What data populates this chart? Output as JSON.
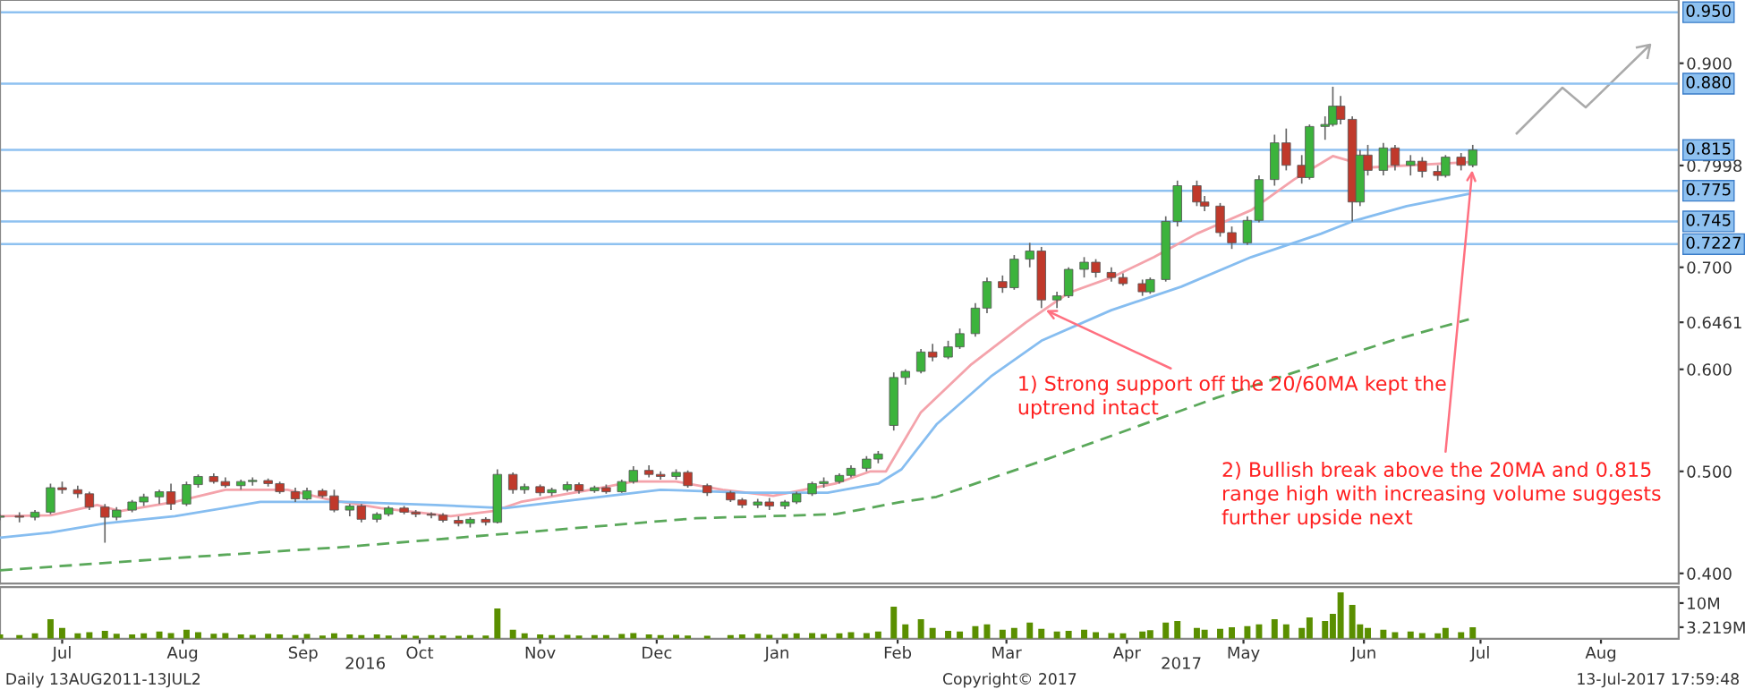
{
  "chart_data": [
    {
      "type": "candlestick",
      "x": [
        "2016-06-29",
        "2016-07-04",
        "2016-07-08",
        "2016-07-12",
        "2016-07-15",
        "2016-07-19",
        "2016-07-22",
        "2016-07-26",
        "2016-07-29",
        "2016-08-02",
        "2016-08-05",
        "2016-08-09",
        "2016-08-12",
        "2016-08-16",
        "2016-08-19",
        "2016-08-23",
        "2016-08-26",
        "2016-08-30",
        "2016-09-02",
        "2016-09-06",
        "2016-09-09",
        "2016-09-13",
        "2016-09-16",
        "2016-09-20",
        "2016-09-23",
        "2016-09-27",
        "2016-09-30",
        "2016-10-04",
        "2016-10-07",
        "2016-10-11",
        "2016-10-14",
        "2016-10-18",
        "2016-10-21",
        "2016-10-25",
        "2016-10-28",
        "2016-11-01",
        "2016-11-04",
        "2016-11-08",
        "2016-11-11",
        "2016-11-15",
        "2016-11-18",
        "2016-11-22",
        "2016-11-25",
        "2016-11-29",
        "2016-12-02",
        "2016-12-06",
        "2016-12-09",
        "2016-12-13",
        "2016-12-16",
        "2016-12-20",
        "2016-12-23",
        "2016-12-28",
        "2017-01-03",
        "2017-01-06",
        "2017-01-10",
        "2017-01-13",
        "2017-01-17",
        "2017-01-20",
        "2017-01-24",
        "2017-01-27",
        "2017-01-31",
        "2017-02-03",
        "2017-02-07",
        "2017-02-10",
        "2017-02-14",
        "2017-02-17",
        "2017-02-21",
        "2017-02-24",
        "2017-02-28",
        "2017-03-03",
        "2017-03-07",
        "2017-03-10",
        "2017-03-14",
        "2017-03-17",
        "2017-03-21",
        "2017-03-24",
        "2017-03-28",
        "2017-03-31",
        "2017-04-04",
        "2017-04-07",
        "2017-04-11",
        "2017-04-14",
        "2017-04-19",
        "2017-04-21",
        "2017-04-25",
        "2017-04-28",
        "2017-05-03",
        "2017-05-05",
        "2017-05-09",
        "2017-05-12",
        "2017-05-16",
        "2017-05-19",
        "2017-05-23",
        "2017-05-26",
        "2017-05-30",
        "2017-06-01",
        "2017-06-05",
        "2017-06-07",
        "2017-06-09",
        "2017-06-12",
        "2017-06-14",
        "2017-06-16",
        "2017-06-20",
        "2017-06-23",
        "2017-06-27",
        "2017-06-30",
        "2017-07-04",
        "2017-07-06",
        "2017-07-10",
        "2017-07-13"
      ],
      "ohlc": [
        [
          0.455,
          0.458,
          0.452,
          0.456
        ],
        [
          0.456,
          0.46,
          0.45,
          0.455
        ],
        [
          0.455,
          0.462,
          0.452,
          0.46
        ],
        [
          0.46,
          0.488,
          0.458,
          0.484
        ],
        [
          0.484,
          0.49,
          0.478,
          0.482
        ],
        [
          0.482,
          0.486,
          0.474,
          0.478
        ],
        [
          0.478,
          0.48,
          0.462,
          0.465
        ],
        [
          0.465,
          0.468,
          0.43,
          0.455
        ],
        [
          0.455,
          0.465,
          0.452,
          0.462
        ],
        [
          0.462,
          0.472,
          0.46,
          0.47
        ],
        [
          0.47,
          0.478,
          0.466,
          0.475
        ],
        [
          0.475,
          0.482,
          0.468,
          0.48
        ],
        [
          0.48,
          0.488,
          0.462,
          0.468
        ],
        [
          0.468,
          0.49,
          0.466,
          0.487
        ],
        [
          0.487,
          0.497,
          0.484,
          0.495
        ],
        [
          0.495,
          0.498,
          0.488,
          0.49
        ],
        [
          0.49,
          0.494,
          0.484,
          0.486
        ],
        [
          0.486,
          0.492,
          0.482,
          0.49
        ],
        [
          0.49,
          0.494,
          0.486,
          0.491
        ],
        [
          0.491,
          0.493,
          0.485,
          0.488
        ],
        [
          0.488,
          0.49,
          0.478,
          0.48
        ],
        [
          0.48,
          0.484,
          0.47,
          0.473
        ],
        [
          0.473,
          0.484,
          0.472,
          0.481
        ],
        [
          0.481,
          0.483,
          0.474,
          0.476
        ],
        [
          0.476,
          0.482,
          0.46,
          0.462
        ],
        [
          0.462,
          0.468,
          0.456,
          0.466
        ],
        [
          0.466,
          0.468,
          0.45,
          0.453
        ],
        [
          0.453,
          0.46,
          0.45,
          0.458
        ],
        [
          0.458,
          0.466,
          0.456,
          0.464
        ],
        [
          0.464,
          0.466,
          0.458,
          0.46
        ],
        [
          0.46,
          0.462,
          0.455,
          0.458
        ],
        [
          0.458,
          0.46,
          0.454,
          0.457
        ],
        [
          0.457,
          0.459,
          0.45,
          0.452
        ],
        [
          0.452,
          0.456,
          0.446,
          0.449
        ],
        [
          0.449,
          0.455,
          0.445,
          0.453
        ],
        [
          0.453,
          0.455,
          0.447,
          0.45
        ],
        [
          0.45,
          0.502,
          0.449,
          0.497
        ],
        [
          0.497,
          0.499,
          0.478,
          0.482
        ],
        [
          0.482,
          0.488,
          0.478,
          0.485
        ],
        [
          0.485,
          0.487,
          0.476,
          0.479
        ],
        [
          0.479,
          0.484,
          0.476,
          0.482
        ],
        [
          0.482,
          0.49,
          0.48,
          0.487
        ],
        [
          0.487,
          0.489,
          0.478,
          0.481
        ],
        [
          0.481,
          0.486,
          0.479,
          0.484
        ],
        [
          0.484,
          0.487,
          0.478,
          0.48
        ],
        [
          0.48,
          0.492,
          0.479,
          0.49
        ],
        [
          0.49,
          0.505,
          0.488,
          0.501
        ],
        [
          0.501,
          0.506,
          0.494,
          0.497
        ],
        [
          0.497,
          0.5,
          0.492,
          0.495
        ],
        [
          0.495,
          0.502,
          0.492,
          0.499
        ],
        [
          0.499,
          0.501,
          0.484,
          0.486
        ],
        [
          0.486,
          0.488,
          0.476,
          0.479
        ],
        [
          0.479,
          0.481,
          0.47,
          0.472
        ],
        [
          0.472,
          0.474,
          0.464,
          0.467
        ],
        [
          0.467,
          0.473,
          0.464,
          0.47
        ],
        [
          0.47,
          0.474,
          0.462,
          0.466
        ],
        [
          0.466,
          0.472,
          0.463,
          0.47
        ],
        [
          0.47,
          0.48,
          0.468,
          0.478
        ],
        [
          0.478,
          0.49,
          0.476,
          0.488
        ],
        [
          0.488,
          0.494,
          0.484,
          0.49
        ],
        [
          0.49,
          0.498,
          0.488,
          0.496
        ],
        [
          0.496,
          0.506,
          0.494,
          0.503
        ],
        [
          0.503,
          0.515,
          0.5,
          0.512
        ],
        [
          0.512,
          0.52,
          0.508,
          0.517
        ],
        [
          0.545,
          0.597,
          0.54,
          0.592
        ],
        [
          0.592,
          0.6,
          0.585,
          0.598
        ],
        [
          0.598,
          0.62,
          0.596,
          0.617
        ],
        [
          0.617,
          0.625,
          0.608,
          0.612
        ],
        [
          0.612,
          0.628,
          0.61,
          0.622
        ],
        [
          0.622,
          0.64,
          0.62,
          0.635
        ],
        [
          0.635,
          0.665,
          0.632,
          0.66
        ],
        [
          0.66,
          0.69,
          0.655,
          0.686
        ],
        [
          0.686,
          0.692,
          0.675,
          0.68
        ],
        [
          0.68,
          0.712,
          0.678,
          0.708
        ],
        [
          0.708,
          0.724,
          0.7,
          0.716
        ],
        [
          0.716,
          0.72,
          0.66,
          0.668
        ],
        [
          0.668,
          0.676,
          0.66,
          0.672
        ],
        [
          0.672,
          0.7,
          0.67,
          0.698
        ],
        [
          0.698,
          0.71,
          0.69,
          0.705
        ],
        [
          0.705,
          0.708,
          0.69,
          0.695
        ],
        [
          0.695,
          0.7,
          0.686,
          0.69
        ],
        [
          0.69,
          0.694,
          0.682,
          0.684
        ],
        [
          0.684,
          0.688,
          0.672,
          0.676
        ],
        [
          0.676,
          0.69,
          0.674,
          0.688
        ],
        [
          0.688,
          0.75,
          0.686,
          0.745
        ],
        [
          0.745,
          0.785,
          0.74,
          0.78
        ],
        [
          0.78,
          0.785,
          0.76,
          0.764
        ],
        [
          0.764,
          0.77,
          0.755,
          0.76
        ],
        [
          0.76,
          0.763,
          0.73,
          0.734
        ],
        [
          0.734,
          0.74,
          0.718,
          0.724
        ],
        [
          0.724,
          0.75,
          0.722,
          0.746
        ],
        [
          0.746,
          0.79,
          0.744,
          0.786
        ],
        [
          0.786,
          0.83,
          0.78,
          0.822
        ],
        [
          0.822,
          0.836,
          0.795,
          0.8
        ],
        [
          0.8,
          0.81,
          0.782,
          0.788
        ],
        [
          0.788,
          0.84,
          0.786,
          0.838
        ],
        [
          0.838,
          0.848,
          0.825,
          0.84
        ],
        [
          0.84,
          0.877,
          0.838,
          0.858
        ],
        [
          0.858,
          0.868,
          0.84,
          0.845
        ],
        [
          0.845,
          0.848,
          0.745,
          0.764
        ],
        [
          0.764,
          0.815,
          0.76,
          0.81
        ],
        [
          0.81,
          0.82,
          0.79,
          0.795
        ],
        [
          0.795,
          0.822,
          0.79,
          0.817
        ],
        [
          0.817,
          0.82,
          0.795,
          0.8
        ],
        [
          0.8,
          0.81,
          0.79,
          0.804
        ],
        [
          0.804,
          0.808,
          0.788,
          0.794
        ],
        [
          0.794,
          0.8,
          0.785,
          0.79
        ],
        [
          0.79,
          0.81,
          0.788,
          0.808
        ],
        [
          0.808,
          0.812,
          0.795,
          0.8
        ],
        [
          0.8,
          0.82,
          0.798,
          0.815
        ]
      ],
      "series": [
        {
          "type": "line",
          "color": "#f4a3ab",
          "x": [
            "2016-06-29",
            "2016-07-12",
            "2016-07-24",
            "2016-07-30",
            "2016-08-13",
            "2016-08-26",
            "2016-09-11",
            "2016-09-22",
            "2016-10-05",
            "2016-10-23",
            "2016-11-03",
            "2016-11-10",
            "2016-11-28",
            "2016-12-09",
            "2016-12-20",
            "2017-01-01",
            "2017-01-14",
            "2017-01-30",
            "2017-02-08",
            "2017-02-12",
            "2017-02-21",
            "2017-03-06",
            "2017-03-20",
            "2017-03-31",
            "2017-04-11",
            "2017-04-22",
            "2017-05-03",
            "2017-05-17",
            "2017-05-28",
            "2017-06-07",
            "2017-06-17",
            "2017-07-12"
          ],
          "values": [
            0.456,
            0.457,
            0.467,
            0.461,
            0.47,
            0.482,
            0.482,
            0.472,
            0.464,
            0.456,
            0.461,
            0.47,
            0.482,
            0.49,
            0.49,
            0.482,
            0.476,
            0.488,
            0.5,
            0.5,
            0.558,
            0.605,
            0.646,
            0.675,
            0.69,
            0.71,
            0.733,
            0.756,
            0.786,
            0.809,
            0.798,
            0.803
          ]
        },
        {
          "type": "line",
          "color": "#86bdf0",
          "x": [
            "2016-06-29",
            "2016-07-12",
            "2016-07-26",
            "2016-08-13",
            "2016-09-04",
            "2016-09-26",
            "2016-10-19",
            "2016-11-06",
            "2016-11-24",
            "2016-12-16",
            "2017-01-07",
            "2017-01-28",
            "2017-02-10",
            "2017-02-16",
            "2017-02-25",
            "2017-03-11",
            "2017-03-24",
            "2017-04-11",
            "2017-04-29",
            "2017-05-17",
            "2017-06-04",
            "2017-06-12",
            "2017-06-26",
            "2017-07-12"
          ],
          "values": [
            0.435,
            0.44,
            0.449,
            0.456,
            0.47,
            0.47,
            0.467,
            0.464,
            0.472,
            0.482,
            0.479,
            0.479,
            0.488,
            0.502,
            0.546,
            0.593,
            0.628,
            0.658,
            0.681,
            0.71,
            0.733,
            0.745,
            0.76,
            0.772
          ]
        },
        {
          "type": "line",
          "color": "#5aa85a",
          "line_style": "dashed",
          "x": [
            "2016-06-29",
            "2016-08-13",
            "2016-09-26",
            "2016-11-10",
            "2016-12-25",
            "2017-01-30",
            "2017-02-16",
            "2017-02-25",
            "2017-03-24",
            "2017-05-08",
            "2017-06-22",
            "2017-07-12"
          ],
          "values": [
            0.403,
            0.415,
            0.426,
            0.44,
            0.454,
            0.458,
            0.47,
            0.475,
            0.51,
            0.572,
            0.628,
            0.649
          ]
        }
      ],
      "xlim": [
        "2016-06-29",
        "2017-09-04"
      ],
      "ylim": [
        0.39,
        0.962
      ],
      "yticks": [
        {
          "value": 0.4,
          "label": "0.400"
        },
        {
          "value": 0.5,
          "label": "0.500"
        },
        {
          "value": 0.6,
          "label": "0.600"
        },
        {
          "value": 0.6461,
          "label": "0.6461"
        },
        {
          "value": 0.7,
          "label": "0.700"
        },
        {
          "value": 0.7998,
          "label": "0.7998"
        },
        {
          "value": 0.9,
          "label": "0.900"
        }
      ],
      "tick_labels": "y",
      "ref_lines": [
        {
          "axis": "y",
          "value": 0.95,
          "label": "0.950",
          "color": "#8ec1f0"
        },
        {
          "axis": "y",
          "value": 0.88,
          "label": "0.880",
          "color": "#8ec1f0"
        },
        {
          "axis": "y",
          "value": 0.815,
          "label": "0.815",
          "color": "#8ec1f0"
        },
        {
          "axis": "y",
          "value": 0.775,
          "label": "0.775",
          "color": "#8ec1f0"
        },
        {
          "axis": "y",
          "value": 0.745,
          "label": "0.745",
          "color": "#8ec1f0"
        },
        {
          "axis": "y",
          "value": 0.7227,
          "label": "0.7227",
          "color": "#8ec1f0"
        }
      ],
      "annotations": [
        {
          "text": "1) Strong support off the 20/60MA kept the\nuptrend intact",
          "x": "2017-03-24",
          "y": 0.66
        },
        {
          "text": "2) Bullish break above the 20MA and 0.815\nrange high with increasing volume suggests\nfurther upside next",
          "x": "2017-07-13",
          "y": 0.8
        }
      ]
    },
    {
      "type": "bar",
      "color": "#5a8f00",
      "x": [
        "2016-06-29",
        "2016-07-04",
        "2016-07-08",
        "2016-07-12",
        "2016-07-15",
        "2016-07-19",
        "2016-07-22",
        "2016-07-26",
        "2016-07-29",
        "2016-08-02",
        "2016-08-05",
        "2016-08-09",
        "2016-08-12",
        "2016-08-16",
        "2016-08-19",
        "2016-08-23",
        "2016-08-26",
        "2016-08-30",
        "2016-09-02",
        "2016-09-06",
        "2016-09-09",
        "2016-09-13",
        "2016-09-16",
        "2016-09-20",
        "2016-09-23",
        "2016-09-27",
        "2016-09-30",
        "2016-10-04",
        "2016-10-07",
        "2016-10-11",
        "2016-10-14",
        "2016-10-18",
        "2016-10-21",
        "2016-10-25",
        "2016-10-28",
        "2016-11-01",
        "2016-11-04",
        "2016-11-08",
        "2016-11-11",
        "2016-11-15",
        "2016-11-18",
        "2016-11-22",
        "2016-11-25",
        "2016-11-29",
        "2016-12-02",
        "2016-12-06",
        "2016-12-09",
        "2016-12-13",
        "2016-12-16",
        "2016-12-20",
        "2016-12-23",
        "2016-12-28",
        "2017-01-03",
        "2017-01-06",
        "2017-01-10",
        "2017-01-13",
        "2017-01-17",
        "2017-01-20",
        "2017-01-24",
        "2017-01-27",
        "2017-01-31",
        "2017-02-03",
        "2017-02-07",
        "2017-02-10",
        "2017-02-14",
        "2017-02-17",
        "2017-02-21",
        "2017-02-24",
        "2017-02-28",
        "2017-03-03",
        "2017-03-07",
        "2017-03-10",
        "2017-03-14",
        "2017-03-17",
        "2017-03-21",
        "2017-03-24",
        "2017-03-28",
        "2017-03-31",
        "2017-04-04",
        "2017-04-07",
        "2017-04-11",
        "2017-04-14",
        "2017-04-19",
        "2017-04-21",
        "2017-04-25",
        "2017-04-28",
        "2017-05-03",
        "2017-05-05",
        "2017-05-09",
        "2017-05-12",
        "2017-05-16",
        "2017-05-19",
        "2017-05-23",
        "2017-05-26",
        "2017-05-30",
        "2017-06-01",
        "2017-06-05",
        "2017-06-07",
        "2017-06-09",
        "2017-06-12",
        "2017-06-14",
        "2017-06-16",
        "2017-06-20",
        "2017-06-23",
        "2017-06-27",
        "2017-06-30",
        "2017-07-04",
        "2017-07-06",
        "2017-07-10",
        "2017-07-13"
      ],
      "values": [
        1.2,
        1.0,
        1.5,
        5.5,
        3.0,
        1.5,
        1.8,
        2.2,
        1.4,
        1.2,
        1.5,
        2.0,
        1.6,
        2.5,
        1.8,
        1.4,
        1.6,
        1.2,
        1.1,
        1.4,
        1.2,
        1.0,
        1.3,
        0.9,
        1.5,
        1.2,
        1.0,
        1.2,
        0.9,
        1.1,
        0.8,
        1.0,
        0.9,
        0.8,
        1.0,
        0.9,
        8.5,
        2.5,
        1.5,
        1.2,
        1.0,
        1.1,
        0.9,
        1.0,
        1.0,
        1.3,
        1.6,
        1.2,
        1.0,
        1.1,
        0.9,
        0.8,
        1.0,
        1.2,
        1.4,
        1.1,
        1.3,
        1.5,
        1.6,
        1.3,
        1.5,
        1.8,
        1.6,
        2.0,
        9.0,
        4.0,
        5.5,
        3.0,
        2.2,
        2.0,
        3.5,
        4.0,
        2.5,
        3.0,
        4.5,
        2.8,
        2.0,
        2.2,
        2.5,
        1.8,
        1.6,
        1.5,
        2.0,
        2.4,
        4.5,
        5.0,
        3.0,
        2.5,
        2.8,
        3.2,
        3.5,
        4.0,
        5.5,
        4.0,
        3.0,
        6.0,
        5.0,
        7.0,
        13.0,
        9.5,
        4.0,
        3.0,
        2.5,
        1.8,
        2.0,
        1.6,
        1.5,
        3.0,
        1.8,
        3.219
      ],
      "xlim": [
        "2016-06-29",
        "2017-09-04"
      ],
      "ylim": [
        0,
        14.5
      ],
      "yticks": [
        {
          "value": 3.219,
          "label": "3.219M"
        },
        {
          "value": 10,
          "label": "10M"
        }
      ],
      "xticks": [
        {
          "value": "2016-07-15",
          "label": "Jul"
        },
        {
          "value": "2016-08-15",
          "label": "Aug"
        },
        {
          "value": "2016-09-15",
          "label": "Sep"
        },
        {
          "value": "2016-10-15",
          "label": "Oct"
        },
        {
          "value": "2016-11-15",
          "label": "Nov"
        },
        {
          "value": "2016-12-15",
          "label": "Dec"
        },
        {
          "value": "2017-01-15",
          "label": "Jan"
        },
        {
          "value": "2017-02-15",
          "label": "Feb"
        },
        {
          "value": "2017-03-15",
          "label": "Mar"
        },
        {
          "value": "2017-04-15",
          "label": "Apr"
        },
        {
          "value": "2017-05-15",
          "label": "May"
        },
        {
          "value": "2017-06-15",
          "label": "Jun"
        },
        {
          "value": "2017-07-15",
          "label": "Jul"
        },
        {
          "value": "2017-08-15",
          "label": "Aug"
        }
      ],
      "x2lim": [
        "2016-06-29",
        "2017-09-04"
      ],
      "x2ticks": [
        {
          "value": "2016-10-01",
          "label": "2016"
        },
        {
          "value": "2017-04-29",
          "label": "2017"
        }
      ],
      "annotations": [
        "Daily 13AUG2011-13JUL2",
        "Copyright© 2017",
        "13-Jul-2017 17:59:48"
      ]
    }
  ]
}
